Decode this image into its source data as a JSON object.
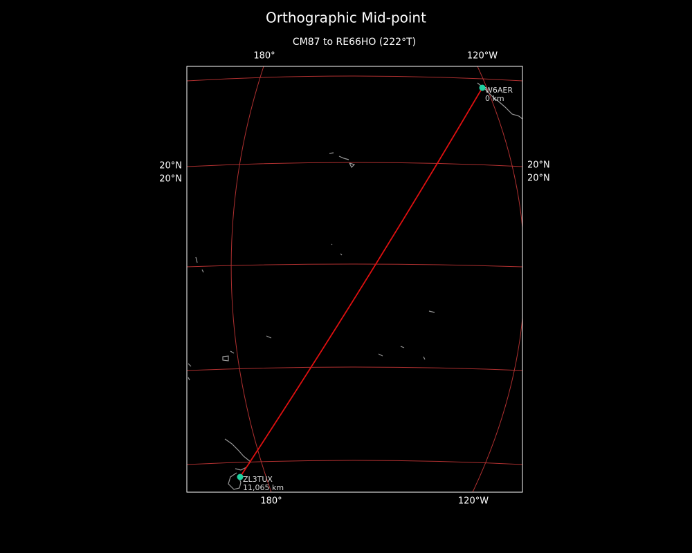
{
  "header": {
    "title": "Orthographic Mid-point",
    "subtitle": "CM87 to RE66HO (222°T)"
  },
  "map": {
    "top_labels": [
      "180°",
      "120°W"
    ],
    "bottom_labels": [
      "180°",
      "120°W"
    ],
    "left_labels": [
      "20°N",
      "20°N"
    ],
    "right_labels": [
      "20°N",
      "20°N"
    ],
    "stations": [
      {
        "call": "W6AER",
        "distance": "0 km"
      },
      {
        "call": "ZL3TUX",
        "distance": "11,065 km"
      }
    ]
  }
}
